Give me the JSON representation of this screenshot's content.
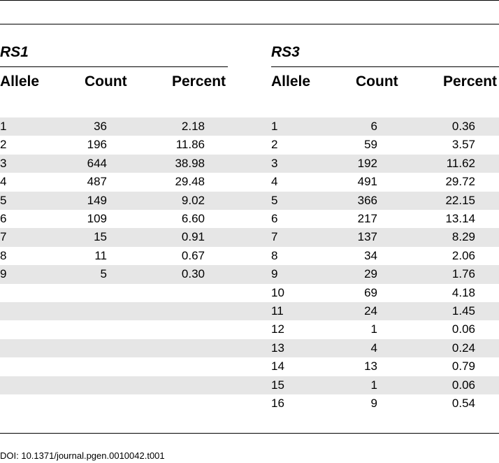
{
  "groups": {
    "left": "RS1",
    "right": "RS3"
  },
  "columns": {
    "allele": "Allele",
    "count": "Count",
    "percent": "Percent"
  },
  "rs1_rows": [
    {
      "allele": "1",
      "count": "36",
      "percent": "2.18"
    },
    {
      "allele": "2",
      "count": "196",
      "percent": "11.86"
    },
    {
      "allele": "3",
      "count": "644",
      "percent": "38.98"
    },
    {
      "allele": "4",
      "count": "487",
      "percent": "29.48"
    },
    {
      "allele": "5",
      "count": "149",
      "percent": "9.02"
    },
    {
      "allele": "6",
      "count": "109",
      "percent": "6.60"
    },
    {
      "allele": "7",
      "count": "15",
      "percent": "0.91"
    },
    {
      "allele": "8",
      "count": "11",
      "percent": "0.67"
    },
    {
      "allele": "9",
      "count": "5",
      "percent": "0.30"
    }
  ],
  "rs3_rows": [
    {
      "allele": "1",
      "count": "6",
      "percent": "0.36"
    },
    {
      "allele": "2",
      "count": "59",
      "percent": "3.57"
    },
    {
      "allele": "3",
      "count": "192",
      "percent": "11.62"
    },
    {
      "allele": "4",
      "count": "491",
      "percent": "29.72"
    },
    {
      "allele": "5",
      "count": "366",
      "percent": "22.15"
    },
    {
      "allele": "6",
      "count": "217",
      "percent": "13.14"
    },
    {
      "allele": "7",
      "count": "137",
      "percent": "8.29"
    },
    {
      "allele": "8",
      "count": "34",
      "percent": "2.06"
    },
    {
      "allele": "9",
      "count": "29",
      "percent": "1.76"
    },
    {
      "allele": "10",
      "count": "69",
      "percent": "4.18"
    },
    {
      "allele": "11",
      "count": "24",
      "percent": "1.45"
    },
    {
      "allele": "12",
      "count": "1",
      "percent": "0.06"
    },
    {
      "allele": "13",
      "count": "4",
      "percent": "0.24"
    },
    {
      "allele": "14",
      "count": "13",
      "percent": "0.79"
    },
    {
      "allele": "15",
      "count": "1",
      "percent": "0.06"
    },
    {
      "allele": "16",
      "count": "9",
      "percent": "0.54"
    }
  ],
  "doi": "DOI: 10.1371/journal.pgen.0010042.t001",
  "colors": {
    "band": "#e6e6e6",
    "rule": "#000000"
  }
}
